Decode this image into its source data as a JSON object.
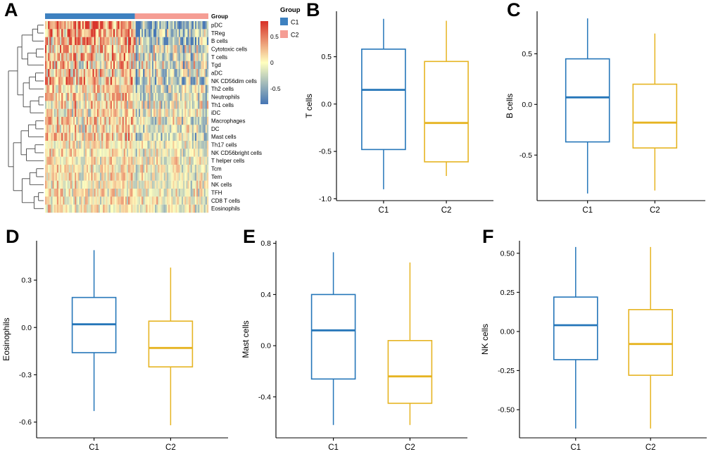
{
  "panels": {
    "A": "A",
    "B": "B",
    "C": "C",
    "D": "D",
    "E": "E",
    "F": "F"
  },
  "colors": {
    "box_c1_blue": "#2576b9",
    "box_c2_gold": "#e6b422",
    "annotation_c1": "#3e81c0",
    "annotation_c2": "#f59d94",
    "heat_high": "#d73027",
    "heat_mid": "#ffffbf",
    "heat_low": "#4575b4"
  },
  "chart_data": [
    {
      "type": "heatmap",
      "panel": "A",
      "rows": [
        "pDC",
        "TReg",
        "B cells",
        "Cytotoxic cells",
        "T cells",
        "Tgd",
        "aDC",
        "NK CD56dim cells",
        "Th2 cells",
        "Neutrophils",
        "Th1 cells",
        "iDC",
        "Macrophages",
        "DC",
        "Mast cells",
        "Th17 cells",
        "NK CD56bright cells",
        "T helper cells",
        "Tcm",
        "Tem",
        "NK cells",
        "TFH",
        "CD8 T cells",
        "Eosinophils"
      ],
      "column_annotation": {
        "title": "Group",
        "groups": [
          {
            "label": "C1",
            "color": "#3e81c0",
            "fraction": 0.55
          },
          {
            "label": "C2",
            "color": "#f59d94",
            "fraction": 0.45
          }
        ]
      },
      "colorbar": {
        "tick_labels": [
          "0.5",
          "0",
          "-0.5"
        ],
        "tick_values": [
          0.5,
          0,
          -0.5
        ],
        "vmin": -0.8,
        "vmax": 0.8,
        "low_color": "#4575b4",
        "mid_color": "#ffffbf",
        "high_color": "#d73027"
      },
      "legend": {
        "title": "Group",
        "items": [
          {
            "label": "C1",
            "color": "#3e81c0"
          },
          {
            "label": "C2",
            "color": "#f59d94"
          }
        ]
      },
      "row_dendrogram": true,
      "n_columns_approx": 110
    },
    {
      "type": "box",
      "panel": "B",
      "ylabel": "T cells",
      "categories": [
        "C1",
        "C2"
      ],
      "colors": [
        "#2576b9",
        "#e6b422"
      ],
      "ylim": [
        -1.02,
        0.98
      ],
      "yticks": [
        {
          "v": -1.0,
          "label": "-1.0"
        },
        {
          "v": -0.5,
          "label": "-0.5"
        },
        {
          "v": 0.0,
          "label": "0.0"
        },
        {
          "v": 0.5,
          "label": "0.5"
        }
      ],
      "series": [
        {
          "name": "C1",
          "low": -0.9,
          "q1": -0.48,
          "median": 0.15,
          "q3": 0.58,
          "high": 0.9
        },
        {
          "name": "C2",
          "low": -0.76,
          "q1": -0.61,
          "median": -0.2,
          "q3": 0.45,
          "high": 0.88
        }
      ]
    },
    {
      "type": "box",
      "panel": "C",
      "ylabel": "B cells",
      "categories": [
        "C1",
        "C2"
      ],
      "colors": [
        "#2576b9",
        "#e6b422"
      ],
      "ylim": [
        -0.95,
        0.92
      ],
      "yticks": [
        {
          "v": -0.5,
          "label": "-0.5"
        },
        {
          "v": 0.0,
          "label": "0.0"
        },
        {
          "v": 0.5,
          "label": "0.5"
        }
      ],
      "series": [
        {
          "name": "C1",
          "low": -0.88,
          "q1": -0.37,
          "median": 0.07,
          "q3": 0.45,
          "high": 0.85
        },
        {
          "name": "C2",
          "low": -0.85,
          "q1": -0.43,
          "median": -0.18,
          "q3": 0.2,
          "high": 0.7
        }
      ]
    },
    {
      "type": "box",
      "panel": "D",
      "ylabel": "Eosinophils",
      "categories": [
        "C1",
        "C2"
      ],
      "colors": [
        "#2576b9",
        "#e6b422"
      ],
      "ylim": [
        -0.7,
        0.55
      ],
      "yticks": [
        {
          "v": -0.6,
          "label": "-0.6"
        },
        {
          "v": -0.3,
          "label": "-0.3"
        },
        {
          "v": 0.0,
          "label": "0.0"
        },
        {
          "v": 0.3,
          "label": "0.3"
        }
      ],
      "series": [
        {
          "name": "C1",
          "low": -0.53,
          "q1": -0.16,
          "median": 0.02,
          "q3": 0.19,
          "high": 0.49
        },
        {
          "name": "C2",
          "low": -0.62,
          "q1": -0.25,
          "median": -0.13,
          "q3": 0.04,
          "high": 0.38
        }
      ]
    },
    {
      "type": "box",
      "panel": "E",
      "ylabel": "Mast cells",
      "categories": [
        "C1",
        "C2"
      ],
      "colors": [
        "#2576b9",
        "#e6b422"
      ],
      "ylim": [
        -0.72,
        0.82
      ],
      "yticks": [
        {
          "v": -0.4,
          "label": "-0.4"
        },
        {
          "v": 0.0,
          "label": "0.0"
        },
        {
          "v": 0.4,
          "label": "0.4"
        },
        {
          "v": 0.8,
          "label": "0.8"
        }
      ],
      "series": [
        {
          "name": "C1",
          "low": -0.62,
          "q1": -0.26,
          "median": 0.12,
          "q3": 0.4,
          "high": 0.73
        },
        {
          "name": "C2",
          "low": -0.62,
          "q1": -0.45,
          "median": -0.24,
          "q3": 0.04,
          "high": 0.65
        }
      ]
    },
    {
      "type": "box",
      "panel": "F",
      "ylabel": "NK cells",
      "categories": [
        "C1",
        "C2"
      ],
      "colors": [
        "#2576b9",
        "#e6b422"
      ],
      "ylim": [
        -0.68,
        0.58
      ],
      "yticks": [
        {
          "v": -0.5,
          "label": "-0.50"
        },
        {
          "v": -0.25,
          "label": "-0.25"
        },
        {
          "v": 0.0,
          "label": "0.00"
        },
        {
          "v": 0.25,
          "label": "0.25"
        },
        {
          "v": 0.5,
          "label": "0.50"
        }
      ],
      "series": [
        {
          "name": "C1",
          "low": -0.62,
          "q1": -0.18,
          "median": 0.04,
          "q3": 0.22,
          "high": 0.54
        },
        {
          "name": "C2",
          "low": -0.62,
          "q1": -0.28,
          "median": -0.08,
          "q3": 0.14,
          "high": 0.54
        }
      ]
    }
  ]
}
